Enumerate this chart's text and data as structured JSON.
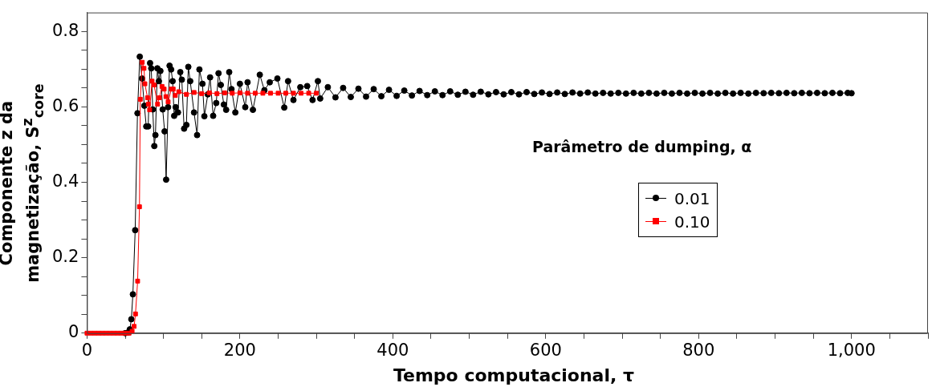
{
  "chart_data": {
    "type": "line",
    "xlabel": "Tempo computacional, τ",
    "ylabel": "Componente z da magnetização, S$^{z}$$_{core}$",
    "legend_title": "Parâmetro de dumping, α",
    "legend": "right",
    "line_style": "solid",
    "xlim": [
      0,
      1100
    ],
    "ylim": [
      0,
      0.85
    ],
    "xticks": [
      0,
      {
        "value": 50,
        "label": null
      },
      200,
      {
        "value": 100,
        "label": null
      },
      {
        "value": 150,
        "label": null
      },
      {
        "value": 250,
        "label": null
      },
      {
        "value": 300,
        "label": null
      },
      {
        "value": 350,
        "label": null
      },
      400,
      {
        "value": 450,
        "label": null
      },
      {
        "value": 500,
        "label": null
      },
      {
        "value": 550,
        "label": null
      },
      600,
      {
        "value": 650,
        "label": null
      },
      {
        "value": 700,
        "label": null
      },
      {
        "value": 750,
        "label": null
      },
      800,
      {
        "value": 850,
        "label": null
      },
      {
        "value": 900,
        "label": null
      },
      {
        "value": 950,
        "label": null
      },
      {
        "value": 1000,
        "label": "1,000"
      },
      {
        "value": 1050,
        "label": null
      },
      {
        "value": 1100,
        "label": null
      }
    ],
    "yticks": [
      0,
      {
        "value": 0.05,
        "label": null
      },
      {
        "value": 0.1,
        "label": null
      },
      {
        "value": 0.15,
        "label": null
      },
      0.2,
      {
        "value": 0.25,
        "label": null
      },
      {
        "value": 0.3,
        "label": null
      },
      {
        "value": 0.35,
        "label": null
      },
      0.4,
      {
        "value": 0.45,
        "label": null
      },
      {
        "value": 0.5,
        "label": null
      },
      {
        "value": 0.55,
        "label": null
      },
      0.6,
      {
        "value": 0.65,
        "label": null
      },
      {
        "value": 0.7,
        "label": null
      },
      {
        "value": 0.75,
        "label": null
      },
      0.8
    ],
    "series": [
      {
        "name": "0.01",
        "color": "#000000",
        "marker": "circle",
        "x": [
          50,
          54,
          56,
          58,
          60,
          63,
          66,
          69,
          72,
          75,
          77.5,
          80,
          82.5,
          84,
          86,
          88,
          89.5,
          92,
          94,
          96,
          99,
          101.5,
          103.5,
          106,
          108,
          110,
          112,
          114,
          116,
          119,
          122,
          124,
          127,
          130,
          132.5,
          135,
          140,
          144,
          147,
          151,
          153.5,
          158,
          161,
          165,
          169,
          172,
          175,
          179,
          182,
          186,
          189,
          194,
          200,
          207,
          210,
          217,
          226,
          232,
          239,
          249,
          258,
          263,
          270,
          279,
          288,
          295,
          302,
          305,
          315,
          325,
          335,
          345,
          355,
          365,
          375,
          385,
          395,
          405,
          415,
          425,
          435,
          445,
          455,
          465,
          475,
          485,
          495,
          505,
          515,
          525,
          535,
          545,
          555,
          565,
          575,
          585,
          595,
          605,
          615,
          625,
          635,
          645,
          655,
          665,
          675,
          685,
          695,
          705,
          715,
          725,
          735,
          745,
          755,
          765,
          775,
          785,
          795,
          805,
          815,
          825,
          835,
          845,
          855,
          865,
          875,
          885,
          895,
          905,
          915,
          925,
          935,
          945,
          955,
          965,
          975,
          985,
          995,
          1000
        ],
        "values": [
          0,
          0.002,
          0.01,
          0.037,
          0.103,
          0.273,
          0.583,
          0.733,
          0.675,
          0.603,
          0.548,
          0.548,
          0.716,
          0.702,
          0.593,
          0.496,
          0.525,
          0.702,
          0.668,
          0.695,
          0.593,
          0.535,
          0.407,
          0.599,
          0.709,
          0.699,
          0.668,
          0.576,
          0.599,
          0.585,
          0.692,
          0.672,
          0.542,
          0.552,
          0.706,
          0.668,
          0.585,
          0.525,
          0.699,
          0.661,
          0.575,
          0.633,
          0.678,
          0.576,
          0.61,
          0.689,
          0.658,
          0.606,
          0.592,
          0.692,
          0.647,
          0.585,
          0.661,
          0.599,
          0.665,
          0.592,
          0.685,
          0.644,
          0.665,
          0.675,
          0.598,
          0.668,
          0.618,
          0.652,
          0.655,
          0.618,
          0.668,
          0.622,
          0.652,
          0.625,
          0.65,
          0.626,
          0.648,
          0.627,
          0.647,
          0.628,
          0.645,
          0.629,
          0.643,
          0.63,
          0.642,
          0.631,
          0.641,
          0.631,
          0.641,
          0.632,
          0.64,
          0.632,
          0.64,
          0.633,
          0.639,
          0.633,
          0.639,
          0.633,
          0.639,
          0.634,
          0.638,
          0.634,
          0.638,
          0.634,
          0.638,
          0.635,
          0.638,
          0.635,
          0.637,
          0.635,
          0.637,
          0.635,
          0.637,
          0.635,
          0.637,
          0.635,
          0.637,
          0.635,
          0.637,
          0.635,
          0.637,
          0.635,
          0.637,
          0.635,
          0.637,
          0.635,
          0.637,
          0.635,
          0.637,
          0.636,
          0.637,
          0.636,
          0.637,
          0.636,
          0.637,
          0.636,
          0.637,
          0.636,
          0.637,
          0.636,
          0.637,
          0.636
        ]
      },
      {
        "name": "0.10",
        "color": "#ff0000",
        "marker": "square",
        "x": [
          0,
          5,
          10,
          15,
          20,
          25,
          30,
          35,
          40,
          45,
          50,
          55,
          59,
          61.6,
          63.4,
          66.2,
          68.6,
          69.7,
          72.2,
          74.5,
          75.7,
          79.2,
          80.2,
          81.9,
          85.1,
          87.7,
          92.3,
          94.6,
          98.1,
          100.9,
          103.3,
          106.1,
          110.3,
          112.7,
          115.5,
          120,
          130,
          140,
          150,
          160,
          170,
          180,
          190,
          200,
          210,
          220,
          230,
          240,
          250,
          260,
          270,
          280,
          290,
          300
        ],
        "values": [
          0,
          0,
          0,
          0,
          0,
          0,
          0,
          0,
          0,
          0,
          0,
          0,
          0.005,
          0.018,
          0.051,
          0.138,
          0.335,
          0.62,
          0.718,
          0.702,
          0.661,
          0.624,
          0.607,
          0.592,
          0.668,
          0.658,
          0.607,
          0.624,
          0.654,
          0.647,
          0.627,
          0.613,
          0.647,
          0.647,
          0.63,
          0.64,
          0.633,
          0.638,
          0.635,
          0.637,
          0.635,
          0.637,
          0.636,
          0.637,
          0.636,
          0.636,
          0.636,
          0.636,
          0.636,
          0.636,
          0.636,
          0.636,
          0.636,
          0.636
        ]
      }
    ]
  }
}
